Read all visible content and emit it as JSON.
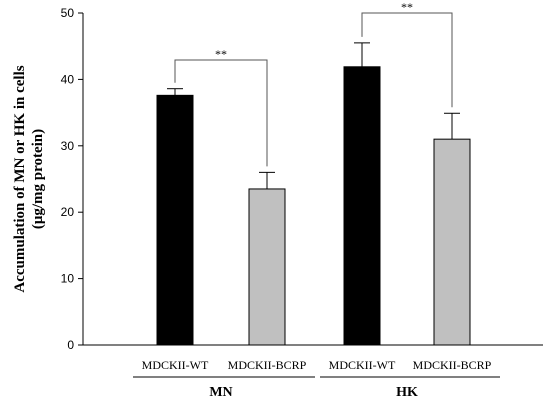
{
  "chart_data": {
    "type": "bar",
    "title": "",
    "ylabel_lines": [
      "Accumulation of MN or HK in cells",
      "(μg/mg protein)"
    ],
    "ylim": [
      0,
      50
    ],
    "yticks": [
      0,
      10,
      20,
      30,
      40,
      50
    ],
    "grid": false,
    "legend": "none",
    "groups": [
      "MN",
      "HK"
    ],
    "categories": [
      "MDCKII-WT",
      "MDCKII-BCRP",
      "MDCKII-WT",
      "MDCKII-BCRP"
    ],
    "group_index": [
      0,
      0,
      1,
      1
    ],
    "values": [
      37.6,
      23.5,
      41.9,
      31.0
    ],
    "errors": [
      1.0,
      2.5,
      3.6,
      3.9
    ],
    "colors": [
      "#000000",
      "#c0c0c0",
      "#000000",
      "#c0c0c0"
    ],
    "significance": [
      {
        "from": 0,
        "to": 1,
        "label": "**"
      },
      {
        "from": 2,
        "to": 3,
        "label": "**"
      }
    ]
  }
}
